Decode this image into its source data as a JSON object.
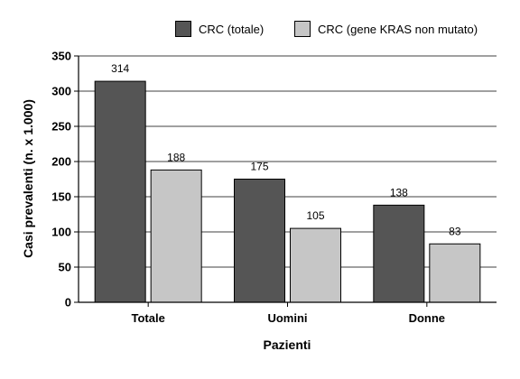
{
  "chart_data": {
    "type": "bar",
    "title": "",
    "xlabel": "Pazienti",
    "ylabel": "Casi prevalenti (n. x 1.000)",
    "ylim": [
      0,
      350
    ],
    "yticks": [
      0,
      50,
      100,
      150,
      200,
      250,
      300,
      350
    ],
    "categories": [
      "Totale",
      "Uomini",
      "Donne"
    ],
    "series": [
      {
        "name": "CRC (totale)",
        "values": [
          314,
          175,
          138
        ],
        "color": "#555555"
      },
      {
        "name": "CRC (gene KRAS non mutato)",
        "values": [
          188,
          105,
          83
        ],
        "color": "#c6c6c6"
      }
    ],
    "grid": true,
    "legend": "top-right"
  }
}
